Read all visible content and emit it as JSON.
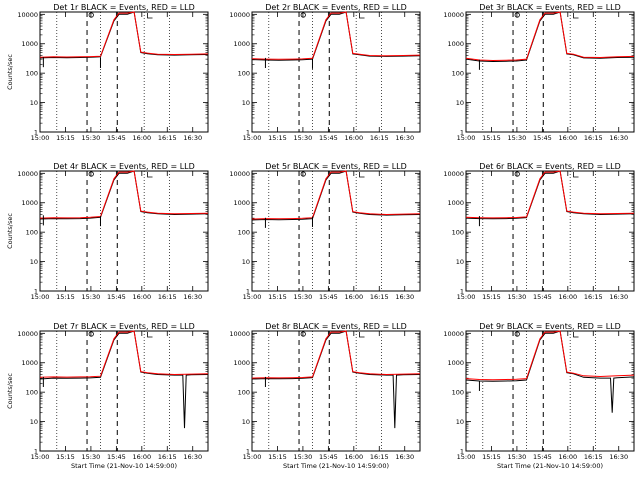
{
  "xtick_labels": [
    "15:00",
    "15:15",
    "15:30",
    "15:45",
    "16:00",
    "16:15",
    "16:30"
  ],
  "ytick_labels": [
    "1",
    "10",
    "100",
    "1000",
    "10000"
  ],
  "chart_data": [
    {
      "type": "line",
      "title": "Det 1r BLACK = Events, RED = LLD",
      "xlabel": "",
      "ylabel": "Counts/sec",
      "ylim": [
        1,
        12000
      ],
      "xlim_minutes": [
        0,
        100
      ],
      "series": [
        {
          "name": "Events",
          "color": "#000000",
          "x": [
            0,
            8,
            16,
            24,
            30,
            36,
            44,
            47,
            48,
            49,
            52,
            56,
            60,
            64,
            70,
            80,
            90,
            100
          ],
          "y": [
            330,
            340,
            335,
            340,
            345,
            360,
            6000,
            10000,
            10000,
            10000,
            10000,
            12000,
            500,
            460,
            420,
            410,
            420,
            430
          ]
        },
        {
          "name": "LLD",
          "color": "#ff0000",
          "x": [
            0,
            8,
            16,
            24,
            30,
            36,
            44,
            47,
            48,
            49,
            52,
            56,
            60,
            64,
            70,
            80,
            90,
            100
          ],
          "y": [
            350,
            360,
            355,
            360,
            365,
            375,
            6500,
            11000,
            11000,
            11000,
            11000,
            12000,
            520,
            480,
            440,
            430,
            440,
            450
          ]
        }
      ],
      "markers": [
        {
          "x": 2,
          "y": 160
        },
        {
          "x": 36,
          "y": 150
        }
      ],
      "dotted_x": [
        10,
        36,
        62,
        77
      ],
      "dashed_x": [
        28,
        46
      ],
      "box_x": [
        30,
        44
      ]
    },
    {
      "type": "line",
      "title": "Det 2r BLACK = Events, RED = LLD",
      "xlabel": "",
      "ylabel": "",
      "ylim": [
        1,
        12000
      ],
      "xlim_minutes": [
        0,
        100
      ],
      "series": [
        {
          "name": "Events",
          "color": "#000000",
          "x": [
            0,
            8,
            16,
            24,
            30,
            36,
            44,
            47,
            48,
            49,
            52,
            56,
            60,
            64,
            70,
            80,
            90,
            100
          ],
          "y": [
            290,
            280,
            275,
            280,
            285,
            300,
            6000,
            10000,
            10000,
            10000,
            10000,
            12000,
            450,
            420,
            380,
            370,
            380,
            390
          ]
        },
        {
          "name": "LLD",
          "color": "#ff0000",
          "x": [
            0,
            8,
            16,
            24,
            30,
            36,
            44,
            47,
            48,
            49,
            52,
            56,
            60,
            64,
            70,
            80,
            90,
            100
          ],
          "y": [
            310,
            300,
            295,
            300,
            305,
            320,
            6500,
            11000,
            11000,
            11000,
            11000,
            12000,
            470,
            440,
            400,
            390,
            400,
            410
          ]
        }
      ],
      "markers": [
        {
          "x": 8,
          "y": 150
        },
        {
          "x": 36,
          "y": 140
        }
      ],
      "dotted_x": [
        10,
        36,
        62,
        77
      ],
      "dashed_x": [
        28,
        46
      ],
      "box_x": [
        30,
        44
      ]
    },
    {
      "type": "line",
      "title": "Det 3r BLACK = Events, RED = LLD",
      "xlabel": "",
      "ylabel": "",
      "ylim": [
        1,
        12000
      ],
      "xlim_minutes": [
        0,
        100
      ],
      "series": [
        {
          "name": "Events",
          "color": "#000000",
          "x": [
            0,
            8,
            16,
            24,
            30,
            36,
            44,
            47,
            48,
            49,
            52,
            56,
            60,
            64,
            70,
            80,
            90,
            100
          ],
          "y": [
            300,
            260,
            250,
            255,
            260,
            280,
            6000,
            10000,
            10000,
            10000,
            10000,
            12000,
            450,
            420,
            330,
            320,
            340,
            350
          ]
        },
        {
          "name": "LLD",
          "color": "#ff0000",
          "x": [
            0,
            8,
            16,
            24,
            30,
            36,
            44,
            47,
            48,
            49,
            52,
            56,
            60,
            64,
            70,
            80,
            90,
            100
          ],
          "y": [
            320,
            280,
            270,
            275,
            280,
            300,
            6500,
            11000,
            11000,
            11000,
            11000,
            12000,
            470,
            440,
            350,
            340,
            360,
            370
          ]
        }
      ],
      "markers": [
        {
          "x": 8,
          "y": 130
        }
      ],
      "dotted_x": [
        10,
        36,
        62,
        77
      ],
      "dashed_x": [
        28,
        46
      ],
      "box_x": [
        30,
        44
      ]
    },
    {
      "type": "line",
      "title": "Det 4r BLACK = Events, RED = LLD",
      "xlabel": "",
      "ylabel": "Counts/sec",
      "ylim": [
        1,
        12000
      ],
      "xlim_minutes": [
        0,
        100
      ],
      "series": [
        {
          "name": "Events",
          "color": "#000000",
          "x": [
            0,
            8,
            16,
            24,
            30,
            36,
            44,
            47,
            48,
            49,
            52,
            56,
            60,
            64,
            70,
            80,
            90,
            100
          ],
          "y": [
            280,
            290,
            285,
            290,
            300,
            320,
            6000,
            10000,
            10000,
            10000,
            10000,
            12000,
            500,
            460,
            420,
            400,
            410,
            420
          ]
        },
        {
          "name": "LLD",
          "color": "#ff0000",
          "x": [
            0,
            8,
            16,
            24,
            30,
            36,
            44,
            47,
            48,
            49,
            52,
            56,
            60,
            64,
            70,
            80,
            90,
            100
          ],
          "y": [
            300,
            310,
            305,
            310,
            320,
            340,
            6500,
            11000,
            11000,
            11000,
            11000,
            12000,
            520,
            480,
            440,
            420,
            430,
            440
          ]
        }
      ],
      "markers": [
        {
          "x": 2,
          "y": 170
        },
        {
          "x": 36,
          "y": 160
        }
      ],
      "dotted_x": [
        10,
        36,
        62,
        77
      ],
      "dashed_x": [
        28,
        46
      ],
      "box_x": [
        30,
        44
      ]
    },
    {
      "type": "line",
      "title": "Det 5r BLACK = Events, RED = LLD",
      "xlabel": "",
      "ylabel": "",
      "ylim": [
        1,
        12000
      ],
      "xlim_minutes": [
        0,
        100
      ],
      "series": [
        {
          "name": "Events",
          "color": "#000000",
          "x": [
            0,
            8,
            16,
            24,
            30,
            36,
            44,
            47,
            48,
            49,
            52,
            56,
            60,
            64,
            70,
            80,
            90,
            100
          ],
          "y": [
            260,
            270,
            265,
            270,
            275,
            290,
            6000,
            10000,
            10000,
            10000,
            10000,
            12000,
            480,
            440,
            400,
            380,
            390,
            400
          ]
        },
        {
          "name": "LLD",
          "color": "#ff0000",
          "x": [
            0,
            8,
            16,
            24,
            30,
            36,
            44,
            47,
            48,
            49,
            52,
            56,
            60,
            64,
            70,
            80,
            90,
            100
          ],
          "y": [
            280,
            290,
            285,
            290,
            295,
            310,
            6500,
            11000,
            11000,
            11000,
            11000,
            12000,
            500,
            460,
            420,
            400,
            410,
            420
          ]
        }
      ],
      "markers": [
        {
          "x": 8,
          "y": 140
        },
        {
          "x": 36,
          "y": 150
        }
      ],
      "dotted_x": [
        10,
        36,
        62,
        77
      ],
      "dashed_x": [
        28,
        46
      ],
      "box_x": [
        30,
        44
      ]
    },
    {
      "type": "line",
      "title": "Det 6r BLACK = Events, RED = LLD",
      "xlabel": "",
      "ylabel": "",
      "ylim": [
        1,
        12000
      ],
      "xlim_minutes": [
        0,
        100
      ],
      "series": [
        {
          "name": "Events",
          "color": "#000000",
          "x": [
            0,
            8,
            16,
            24,
            30,
            36,
            44,
            47,
            48,
            49,
            52,
            56,
            60,
            64,
            70,
            80,
            90,
            100
          ],
          "y": [
            300,
            290,
            285,
            290,
            295,
            310,
            6000,
            10000,
            10000,
            10000,
            10000,
            12000,
            500,
            460,
            420,
            400,
            410,
            420
          ]
        },
        {
          "name": "LLD",
          "color": "#ff0000",
          "x": [
            0,
            8,
            16,
            24,
            30,
            36,
            44,
            47,
            48,
            49,
            52,
            56,
            60,
            64,
            70,
            80,
            90,
            100
          ],
          "y": [
            320,
            310,
            305,
            310,
            315,
            330,
            6500,
            11000,
            11000,
            11000,
            11000,
            12000,
            520,
            480,
            440,
            420,
            430,
            440
          ]
        }
      ],
      "markers": [
        {
          "x": 8,
          "y": 160
        }
      ],
      "dotted_x": [
        10,
        36,
        62,
        77
      ],
      "dashed_x": [
        28,
        46
      ],
      "box_x": [
        30,
        44
      ]
    },
    {
      "type": "line",
      "title": "Det 7r BLACK = Events, RED = LLD",
      "xlabel": "Start Time (21-Nov-10 14:59:00)",
      "ylabel": "Counts/sec",
      "ylim": [
        1,
        12000
      ],
      "xlim_minutes": [
        0,
        100
      ],
      "series": [
        {
          "name": "Events",
          "color": "#000000",
          "x": [
            0,
            8,
            16,
            24,
            30,
            36,
            44,
            47,
            48,
            49,
            52,
            56,
            60,
            64,
            70,
            80,
            85,
            86,
            87,
            90,
            100
          ],
          "y": [
            280,
            300,
            295,
            300,
            305,
            320,
            6000,
            10000,
            10000,
            10000,
            10000,
            12000,
            480,
            440,
            400,
            380,
            380,
            6,
            380,
            390,
            400
          ]
        },
        {
          "name": "LLD",
          "color": "#ff0000",
          "x": [
            0,
            8,
            16,
            24,
            30,
            36,
            44,
            47,
            48,
            49,
            52,
            56,
            60,
            64,
            70,
            80,
            90,
            100
          ],
          "y": [
            320,
            330,
            325,
            330,
            335,
            350,
            6500,
            11000,
            11000,
            11000,
            11000,
            12000,
            500,
            460,
            420,
            400,
            410,
            420
          ]
        }
      ],
      "markers": [
        {
          "x": 2,
          "y": 150
        }
      ],
      "dotted_x": [
        10,
        36,
        62,
        77
      ],
      "dashed_x": [
        28,
        46
      ],
      "box_x": [
        30,
        44
      ]
    },
    {
      "type": "line",
      "title": "Det 8r BLACK = Events, RED = LLD",
      "xlabel": "Start Time (21-Nov-10 14:59:00)",
      "ylabel": "",
      "ylim": [
        1,
        12000
      ],
      "xlim_minutes": [
        0,
        100
      ],
      "series": [
        {
          "name": "Events",
          "color": "#000000",
          "x": [
            0,
            8,
            16,
            24,
            30,
            36,
            44,
            47,
            48,
            49,
            52,
            56,
            60,
            64,
            70,
            80,
            84,
            85,
            86,
            90,
            100
          ],
          "y": [
            280,
            290,
            285,
            290,
            295,
            310,
            6000,
            10000,
            10000,
            10000,
            10000,
            12000,
            480,
            440,
            400,
            380,
            380,
            6,
            380,
            390,
            400
          ]
        },
        {
          "name": "LLD",
          "color": "#ff0000",
          "x": [
            0,
            8,
            16,
            24,
            30,
            36,
            44,
            47,
            48,
            49,
            52,
            56,
            60,
            64,
            70,
            80,
            90,
            100
          ],
          "y": [
            300,
            310,
            305,
            310,
            315,
            330,
            6500,
            11000,
            11000,
            11000,
            11000,
            12000,
            500,
            460,
            420,
            400,
            410,
            420
          ]
        }
      ],
      "markers": [
        {
          "x": 8,
          "y": 150
        }
      ],
      "dotted_x": [
        10,
        36,
        62,
        77
      ],
      "dashed_x": [
        28,
        46
      ],
      "box_x": [
        30,
        44
      ]
    },
    {
      "type": "line",
      "title": "Det 9r BLACK = Events, RED = LLD",
      "xlabel": "Start Time (21-Nov-10 14:59:00)",
      "ylabel": "",
      "ylim": [
        1,
        12000
      ],
      "xlim_minutes": [
        0,
        100
      ],
      "series": [
        {
          "name": "Events",
          "color": "#000000",
          "x": [
            0,
            8,
            16,
            24,
            30,
            36,
            44,
            47,
            48,
            49,
            52,
            56,
            60,
            64,
            70,
            80,
            86,
            87,
            88,
            90,
            100
          ],
          "y": [
            260,
            240,
            235,
            240,
            245,
            260,
            6000,
            10000,
            10000,
            10000,
            10000,
            12000,
            460,
            420,
            320,
            300,
            300,
            20,
            300,
            310,
            330
          ]
        },
        {
          "name": "LLD",
          "color": "#ff0000",
          "x": [
            0,
            8,
            16,
            24,
            30,
            36,
            44,
            47,
            48,
            49,
            52,
            56,
            60,
            64,
            70,
            80,
            90,
            100
          ],
          "y": [
            290,
            270,
            265,
            270,
            275,
            290,
            6500,
            11000,
            11000,
            11000,
            11000,
            12000,
            480,
            440,
            360,
            340,
            360,
            380
          ]
        }
      ],
      "markers": [
        {
          "x": 8,
          "y": 110
        }
      ],
      "dotted_x": [
        10,
        36,
        62,
        77
      ],
      "dashed_x": [
        28,
        46
      ],
      "box_x": [
        30,
        44
      ]
    }
  ]
}
